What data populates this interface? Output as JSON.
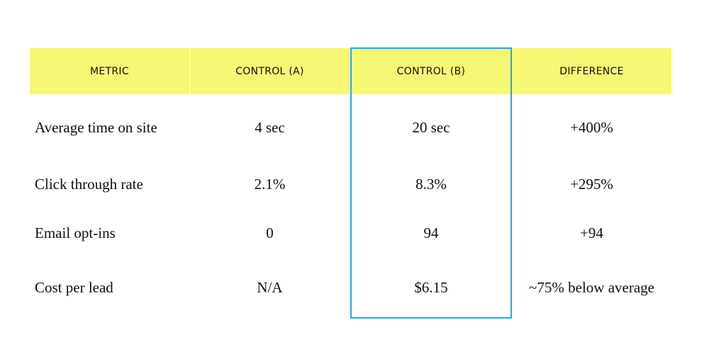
{
  "table": {
    "header": [
      "METRIC",
      "CONTROL (A)",
      "CONTROL (B)",
      "DIFFERENCE"
    ],
    "rows": [
      [
        "Average time on site",
        "4 sec",
        "20 sec",
        "+400%"
      ],
      [
        "Click through rate",
        "2.1%",
        "8.3%",
        "+295%"
      ],
      [
        "Email opt-ins",
        "0",
        "94",
        "+94"
      ],
      [
        "Cost per lead",
        "N/A",
        "$6.15",
        "~75% below average"
      ]
    ]
  }
}
